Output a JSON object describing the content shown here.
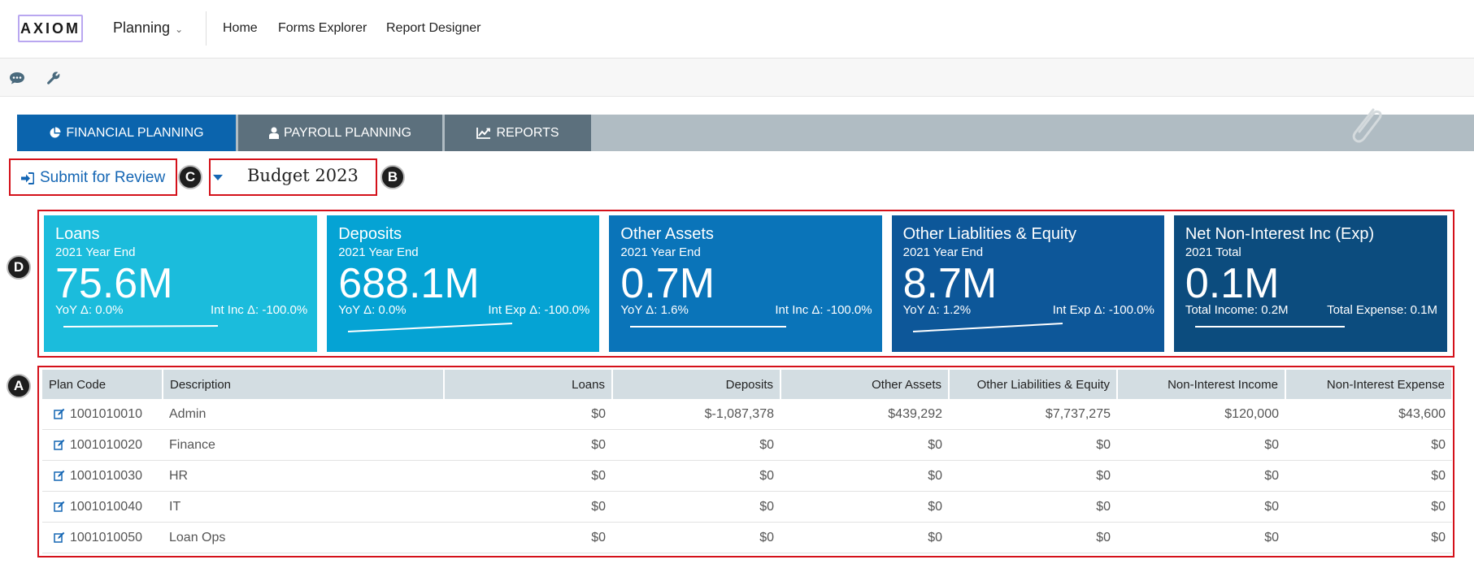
{
  "app": {
    "logo": "AXIOM",
    "module": "Planning",
    "nav": [
      "Home",
      "Forms Explorer",
      "Report Designer"
    ]
  },
  "toolbar": {
    "icons": [
      "chat-icon",
      "wrench-icon"
    ]
  },
  "tabs": [
    {
      "label": "FINANCIAL PLANNING",
      "icon": "pie-chart-icon",
      "active": true
    },
    {
      "label": "PAYROLL PLANNING",
      "icon": "user-icon",
      "active": false
    },
    {
      "label": "REPORTS",
      "icon": "line-chart-icon",
      "active": false
    }
  ],
  "actions": {
    "submit_label": "Submit for Review",
    "budget_value": "Budget 2023"
  },
  "markers": {
    "a": "A",
    "b": "B",
    "c": "C",
    "d": "D"
  },
  "cards": [
    {
      "title": "Loans",
      "subtitle": "2021 Year End",
      "value": "75.6M",
      "left": "YoY Δ: 0.0%",
      "right": "Int Inc Δ: -100.0%",
      "color": "#1bbcdc"
    },
    {
      "title": "Deposits",
      "subtitle": "2021 Year End",
      "value": "688.1M",
      "left": "YoY Δ: 0.0%",
      "right": "Int Exp Δ: -100.0%",
      "color": "#05a3d4"
    },
    {
      "title": "Other Assets",
      "subtitle": "2021 Year End",
      "value": "0.7M",
      "left": "YoY Δ: 1.6%",
      "right": "Int Inc Δ: -100.0%",
      "color": "#0a74b9"
    },
    {
      "title": "Other Liablities & Equity",
      "subtitle": "2021 Year End",
      "value": "8.7M",
      "left": "YoY Δ: 1.2%",
      "right": "Int Exp Δ: -100.0%",
      "color": "#0d5799"
    },
    {
      "title": "Net Non-Interest Inc (Exp)",
      "subtitle": "2021 Total",
      "value": "0.1M",
      "left": "Total Income: 0.2M",
      "right": "Total Expense: 0.1M",
      "color": "#0c4c7e"
    }
  ],
  "table": {
    "headers": [
      "Plan Code",
      "Description",
      "Loans",
      "Deposits",
      "Other Assets",
      "Other Liabilities & Equity",
      "Non-Interest Income",
      "Non-Interest Expense"
    ],
    "rows": [
      [
        "1001010010",
        "Admin",
        "$0",
        "$-1,087,378",
        "$439,292",
        "$7,737,275",
        "$120,000",
        "$43,600"
      ],
      [
        "1001010020",
        "Finance",
        "$0",
        "$0",
        "$0",
        "$0",
        "$0",
        "$0"
      ],
      [
        "1001010030",
        "HR",
        "$0",
        "$0",
        "$0",
        "$0",
        "$0",
        "$0"
      ],
      [
        "1001010040",
        "IT",
        "$0",
        "$0",
        "$0",
        "$0",
        "$0",
        "$0"
      ],
      [
        "1001010050",
        "Loan Ops",
        "$0",
        "$0",
        "$0",
        "$0",
        "$0",
        "$0"
      ]
    ]
  },
  "colors": {
    "accent": "#0b64ad",
    "highlight": "#d4111a",
    "tab_inactive": "#5c707d"
  }
}
